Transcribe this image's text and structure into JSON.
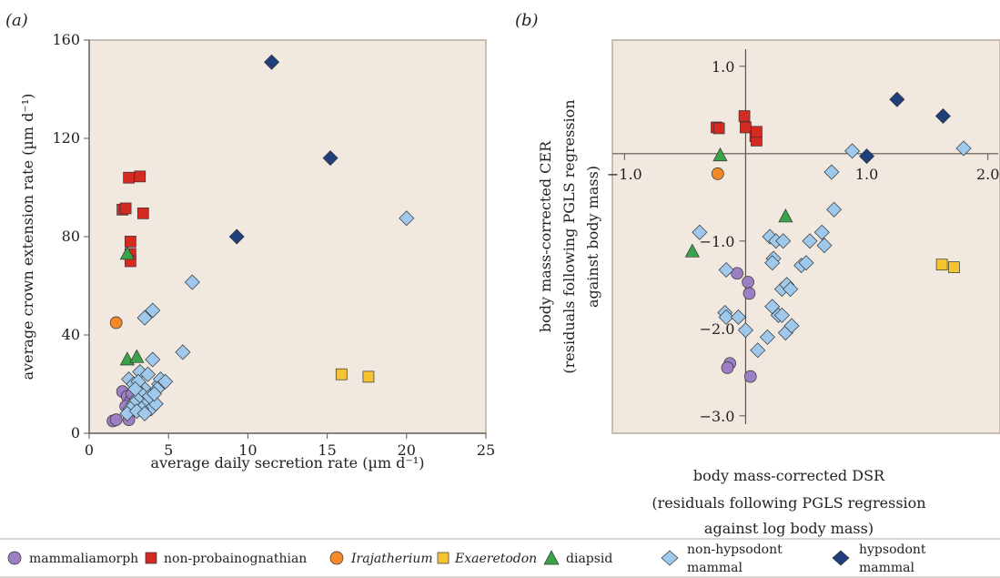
{
  "chart_data": [
    {
      "panel": "(a)",
      "type": "scatter",
      "xlabel": "average daily secretion rate (µm d⁻¹)",
      "ylabel": "average crown extension rate (µm d⁻¹)",
      "xlim": [
        0,
        25
      ],
      "ylim": [
        0,
        160
      ],
      "xticks": [
        "0",
        "5",
        "10",
        "15",
        "20",
        "25"
      ],
      "yticks": [
        "0",
        "40",
        "80",
        "120",
        "160"
      ],
      "series": [
        {
          "name": "mammaliamorph",
          "marker": "circle",
          "color": "#9b7fc2",
          "points": [
            [
              1.5,
              5
            ],
            [
              1.7,
              5.5
            ],
            [
              2.1,
              17
            ],
            [
              2.4,
              15
            ],
            [
              2.6,
              13
            ],
            [
              2.5,
              5.5
            ],
            [
              2.3,
              11
            ],
            [
              2.7,
              16
            ]
          ]
        },
        {
          "name": "non-probainognathian",
          "marker": "square",
          "color": "#d42a24",
          "points": [
            [
              2.1,
              91
            ],
            [
              2.3,
              91.5
            ],
            [
              2.5,
              104
            ],
            [
              3.2,
              104.5
            ],
            [
              3.4,
              89.5
            ],
            [
              2.6,
              78
            ],
            [
              2.6,
              73
            ],
            [
              2.6,
              70
            ]
          ]
        },
        {
          "name": "Irajatherium",
          "marker": "circle",
          "color": "#f28a28",
          "points": [
            [
              1.7,
              45
            ]
          ]
        },
        {
          "name": "Exaeretodon",
          "marker": "square",
          "color": "#f7c431",
          "points": [
            [
              15.9,
              24
            ],
            [
              17.6,
              23
            ]
          ]
        },
        {
          "name": "diapsid",
          "marker": "triangle",
          "color": "#3aa34a",
          "points": [
            [
              2.4,
              73
            ],
            [
              2.4,
              30
            ],
            [
              3.0,
              31
            ]
          ]
        },
        {
          "name": "non-hypsodont mammal",
          "marker": "diamond",
          "color": "#9ec9ec",
          "points": [
            [
              20.0,
              87.5
            ],
            [
              6.5,
              61.5
            ],
            [
              5.9,
              33
            ],
            [
              4.0,
              50
            ],
            [
              3.5,
              47
            ],
            [
              4.0,
              30
            ],
            [
              2.5,
              22
            ],
            [
              2.8,
              20
            ],
            [
              3.2,
              25
            ],
            [
              3.7,
              24
            ],
            [
              3.5,
              18
            ],
            [
              3.3,
              16
            ],
            [
              3.0,
              14
            ],
            [
              2.8,
              12
            ],
            [
              3.6,
              12
            ],
            [
              3.9,
              10
            ],
            [
              4.2,
              12
            ],
            [
              4.4,
              20
            ],
            [
              4.5,
              22
            ],
            [
              4.3,
              18
            ],
            [
              4.8,
              21
            ],
            [
              3.1,
              21
            ],
            [
              2.6,
              10
            ],
            [
              2.4,
              8
            ],
            [
              3.3,
              10
            ],
            [
              3.8,
              15
            ],
            [
              2.9,
              18
            ],
            [
              4.1,
              16
            ],
            [
              3.0,
              9
            ],
            [
              3.5,
              8
            ]
          ]
        },
        {
          "name": "hypsodont mammal",
          "marker": "diamond",
          "color": "#1f3f7a",
          "points": [
            [
              11.5,
              151
            ],
            [
              15.2,
              112
            ],
            [
              9.3,
              80
            ]
          ]
        }
      ]
    },
    {
      "panel": "(b)",
      "type": "scatter",
      "xlabel_lines": [
        "body mass-corrected DSR",
        "(residuals following PGLS regression",
        "against log body mass)"
      ],
      "ylabel_lines": [
        "body mass-corrected CER",
        "(residuals following PGLS regression",
        "against body mass)"
      ],
      "xlim": [
        -1.1,
        2.1
      ],
      "ylim": [
        -3.2,
        1.3
      ],
      "xticks": [
        "−1.0",
        "1.0",
        "2.0"
      ],
      "yticks": [
        "1.0",
        "−1.0",
        "−2.0",
        "−3.0"
      ],
      "series": [
        {
          "name": "mammaliamorph",
          "marker": "circle",
          "color": "#9b7fc2",
          "points": [
            [
              -0.07,
              -1.37
            ],
            [
              0.02,
              -1.47
            ],
            [
              0.03,
              -1.6
            ],
            [
              -0.13,
              -2.4
            ],
            [
              -0.15,
              -2.45
            ],
            [
              0.04,
              -2.55
            ]
          ]
        },
        {
          "name": "non-probainognathian",
          "marker": "square",
          "color": "#d42a24",
          "points": [
            [
              -0.24,
              0.3
            ],
            [
              -0.22,
              0.29
            ],
            [
              -0.01,
              0.43
            ],
            [
              0.0,
              0.3
            ],
            [
              0.08,
              0.2
            ],
            [
              0.09,
              0.15
            ],
            [
              0.09,
              0.25
            ]
          ]
        },
        {
          "name": "Irajatherium",
          "marker": "circle",
          "color": "#f28a28",
          "points": [
            [
              -0.23,
              -0.23
            ]
          ]
        },
        {
          "name": "Exaeretodon",
          "marker": "square",
          "color": "#f7c431",
          "points": [
            [
              1.62,
              -1.27
            ],
            [
              1.72,
              -1.3
            ]
          ]
        },
        {
          "name": "diapsid",
          "marker": "triangle",
          "color": "#3aa34a",
          "points": [
            [
              -0.21,
              -0.02
            ],
            [
              0.33,
              -0.72
            ],
            [
              -0.44,
              -1.12
            ]
          ]
        },
        {
          "name": "non-hypsodont mammal",
          "marker": "diamond",
          "color": "#9ec9ec",
          "points": [
            [
              0.88,
              0.03
            ],
            [
              1.8,
              0.06
            ],
            [
              0.71,
              -0.21
            ],
            [
              0.73,
              -0.64
            ],
            [
              -0.38,
              -0.9
            ],
            [
              -0.16,
              -1.33
            ],
            [
              0.2,
              -0.95
            ],
            [
              0.25,
              -1.0
            ],
            [
              0.31,
              -1.0
            ],
            [
              0.46,
              -1.28
            ],
            [
              0.5,
              -1.25
            ],
            [
              0.53,
              -1.0
            ],
            [
              0.63,
              -0.9
            ],
            [
              0.65,
              -1.05
            ],
            [
              0.23,
              -1.2
            ],
            [
              0.22,
              -1.25
            ],
            [
              0.3,
              -1.55
            ],
            [
              0.34,
              -1.5
            ],
            [
              0.37,
              -1.55
            ],
            [
              0.22,
              -1.75
            ],
            [
              0.27,
              -1.85
            ],
            [
              0.3,
              -1.85
            ],
            [
              0.33,
              -2.05
            ],
            [
              0.38,
              -1.97
            ],
            [
              0.18,
              -2.1
            ],
            [
              0.1,
              -2.25
            ],
            [
              -0.17,
              -1.82
            ],
            [
              -0.16,
              -1.87
            ],
            [
              -0.06,
              -1.87
            ],
            [
              0.0,
              -2.02
            ]
          ]
        },
        {
          "name": "hypsodont mammal",
          "marker": "diamond",
          "color": "#1f3f7a",
          "points": [
            [
              1.25,
              0.62
            ],
            [
              1.63,
              0.43
            ],
            [
              1.0,
              -0.03
            ]
          ]
        }
      ]
    }
  ],
  "legend": {
    "items": [
      {
        "label": "mammaliamorph",
        "italic": false
      },
      {
        "label": "non-probainognathian",
        "italic": false
      },
      {
        "label": "Irajatherium",
        "italic": true
      },
      {
        "label": "Exaeretodon",
        "italic": true
      },
      {
        "label": "diapsid",
        "italic": false
      },
      {
        "label": "non-hypsodont",
        "label2": "mammal",
        "italic": false
      },
      {
        "label": "hypsodont",
        "label2": "mammal",
        "italic": false
      }
    ]
  },
  "colors": {
    "plot_bg": "#f1e8df",
    "frame": "#b8aca0",
    "axis": "#555555"
  }
}
